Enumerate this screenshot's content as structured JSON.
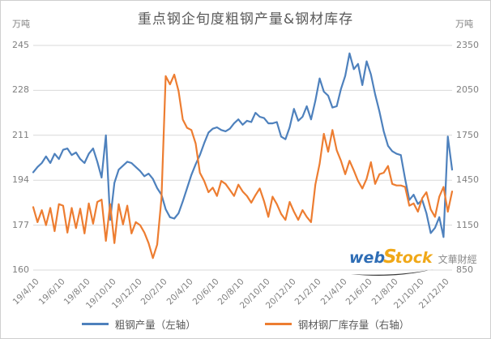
{
  "title": "重点钢企旬度粗钢产量&钢材库存",
  "axes": {
    "left_unit": "万吨",
    "right_unit": "万吨",
    "left_ticks": [
      245,
      228,
      211,
      194,
      177,
      160
    ],
    "right_ticks": [
      2350,
      2050,
      1750,
      1450,
      1150,
      850
    ]
  },
  "legend": [
    {
      "label": "粗钢产量（左轴）",
      "color": "#4E81BD"
    },
    {
      "label": "钢材钢厂库存量（右轴）",
      "color": "#ED7D31"
    }
  ],
  "watermark": {
    "part_web": "web",
    "part_s": "S",
    "part_tock": "tock",
    "part_cn": "文華財經",
    "color_web": "#2E6DB5",
    "color_gold": "#F0A818",
    "color_cn": "#8a8a8a",
    "color_swoosh": "#3a3a3a"
  },
  "chart_data": {
    "type": "line",
    "title": "重点钢企旬度粗钢产量&钢材库存",
    "x_tick_labels": [
      "19/4/10",
      "19/6/10",
      "19/8/10",
      "19/10/10",
      "19/12/10",
      "20/2/10",
      "20/4/10",
      "20/6/10",
      "20/8/10",
      "20/10/10",
      "20/12/10",
      "21/2/10",
      "21/4/10",
      "21/6/10",
      "21/8/10",
      "21/10/10",
      "21/12/10"
    ],
    "x_tick_interval": 6,
    "x_label_rotation_deg": 45,
    "ylim_left": [
      160,
      245
    ],
    "ylim_right": [
      850,
      2350
    ],
    "ylabel_left": "万吨",
    "ylabel_right": "万吨",
    "grid": "horizontal",
    "grid_color": "#D9D9D9",
    "legend_position": "bottom",
    "series": [
      {
        "name": "粗钢产量（左轴）",
        "axis": "left",
        "color": "#4E81BD",
        "values": [
          197,
          199,
          200.5,
          203,
          200.5,
          204,
          202,
          205.5,
          206,
          203.5,
          204.5,
          202,
          200.5,
          204,
          206,
          201,
          195,
          211,
          179,
          193,
          198,
          199.5,
          201,
          200.5,
          199,
          197.5,
          195.5,
          196.5,
          194.5,
          191,
          188.5,
          183,
          180,
          179.5,
          181.5,
          186,
          191,
          196,
          200,
          203.5,
          208,
          212,
          213.5,
          214,
          213,
          212.5,
          213.5,
          215.5,
          217,
          215,
          216.5,
          216,
          219.5,
          218,
          217.5,
          215.5,
          215.5,
          216,
          210.5,
          209.5,
          214,
          221,
          216.5,
          218,
          222,
          217,
          224,
          232.5,
          227.5,
          226,
          221.5,
          222,
          228.5,
          233.5,
          242,
          236,
          238,
          230,
          239,
          234,
          226.5,
          220,
          212.5,
          207,
          205,
          204,
          203.5,
          194.5,
          186.5,
          188.5,
          185,
          186.5,
          181.5,
          174,
          176,
          180,
          172.5,
          210.5,
          198
        ]
      },
      {
        "name": "钢材钢厂库存量（右轴）",
        "axis": "right",
        "color": "#ED7D31",
        "values": [
          1270,
          1170,
          1250,
          1150,
          1265,
          1110,
          1290,
          1280,
          1100,
          1265,
          1130,
          1260,
          1095,
          1295,
          1160,
          1305,
          1320,
          1045,
          1290,
          1030,
          1290,
          1155,
          1280,
          1095,
          1170,
          1150,
          1100,
          1030,
          930,
          1020,
          1330,
          2145,
          2090,
          2155,
          2045,
          1855,
          1800,
          1785,
          1695,
          1500,
          1445,
          1370,
          1400,
          1345,
          1445,
          1425,
          1385,
          1345,
          1420,
          1375,
          1345,
          1300,
          1350,
          1395,
          1310,
          1205,
          1340,
          1290,
          1225,
          1185,
          1305,
          1240,
          1185,
          1250,
          1205,
          1170,
          1420,
          1560,
          1760,
          1640,
          1785,
          1650,
          1580,
          1490,
          1580,
          1515,
          1445,
          1395,
          1460,
          1570,
          1425,
          1490,
          1500,
          1545,
          1425,
          1415,
          1415,
          1405,
          1280,
          1295,
          1240,
          1330,
          1370,
          1255,
          1205,
          1340,
          1405,
          1240,
          1375
        ]
      }
    ]
  }
}
